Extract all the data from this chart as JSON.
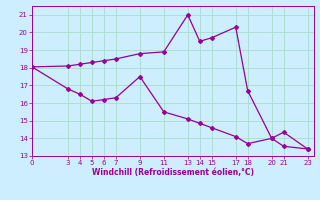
{
  "line1_x": [
    0,
    3,
    4,
    5,
    6,
    7,
    9,
    11,
    13,
    14,
    15,
    17,
    18,
    20,
    21,
    23
  ],
  "line1_y": [
    18.05,
    18.1,
    18.2,
    18.3,
    18.4,
    18.5,
    18.8,
    18.9,
    21.0,
    19.5,
    19.7,
    20.3,
    16.7,
    14.0,
    14.35,
    13.4
  ],
  "line2_x": [
    0,
    3,
    4,
    5,
    6,
    7,
    9,
    11,
    13,
    14,
    15,
    17,
    18,
    20,
    21,
    23
  ],
  "line2_y": [
    18.05,
    16.8,
    16.5,
    16.1,
    16.2,
    16.3,
    17.5,
    15.5,
    15.1,
    14.85,
    14.6,
    14.1,
    13.7,
    14.0,
    13.55,
    13.4
  ],
  "color": "#990099",
  "bg_color": "#cceeff",
  "grid_color": "#aaddcc",
  "xlabel": "Windchill (Refroidissement éolien,°C)",
  "xticks": [
    0,
    3,
    4,
    5,
    6,
    7,
    9,
    11,
    13,
    14,
    15,
    17,
    18,
    20,
    21,
    23
  ],
  "yticks": [
    13,
    14,
    15,
    16,
    17,
    18,
    19,
    20,
    21
  ],
  "xlim": [
    0,
    23.5
  ],
  "ylim": [
    13,
    21.5
  ]
}
